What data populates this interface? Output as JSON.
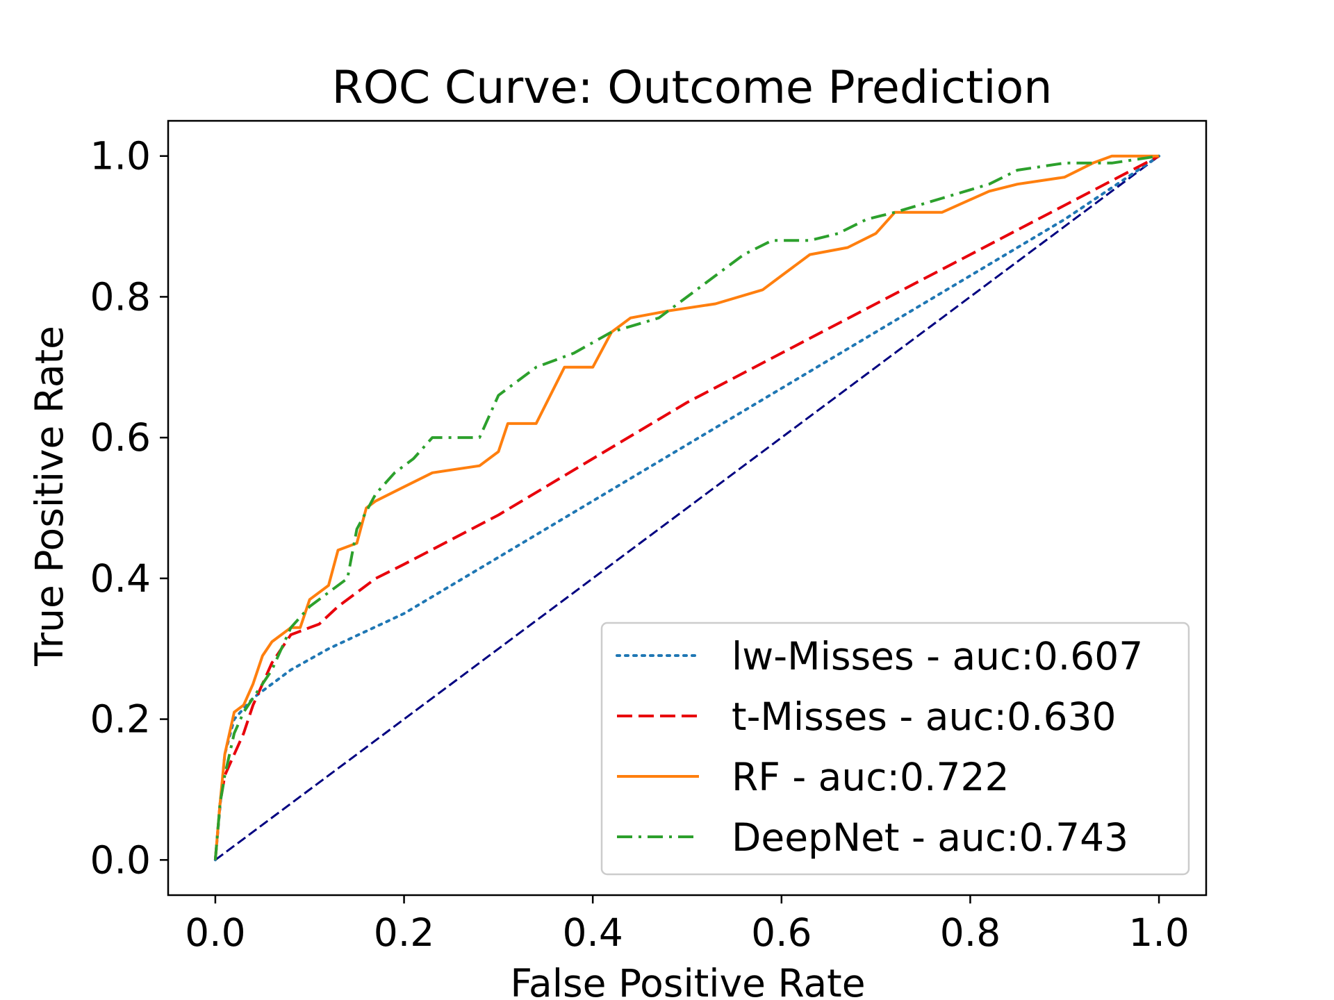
{
  "chart_data": {
    "type": "line",
    "title": "ROC Curve: Outcome Prediction",
    "xlabel": "False Positive Rate",
    "ylabel": "True Positive Rate",
    "xlim": [
      -0.05,
      1.05
    ],
    "ylim": [
      -0.05,
      1.05
    ],
    "xticks": [
      0.0,
      0.2,
      0.4,
      0.6,
      0.8,
      1.0
    ],
    "yticks": [
      0.0,
      0.2,
      0.4,
      0.6,
      0.8,
      1.0
    ],
    "xtick_labels": [
      "0.0",
      "0.2",
      "0.4",
      "0.6",
      "0.8",
      "1.0"
    ],
    "ytick_labels": [
      "0.0",
      "0.2",
      "0.4",
      "0.6",
      "0.8",
      "1.0"
    ],
    "grid": false,
    "legend_position": "lower-right",
    "reference_line": {
      "x": [
        0,
        1
      ],
      "y": [
        0,
        1
      ],
      "color": "#000080",
      "style": "dashed"
    },
    "series": [
      {
        "name": "lw-Misses - auc:0.607",
        "color": "#1f77b4",
        "style": "dotted",
        "x": [
          0,
          0.01,
          0.02,
          0.04,
          0.06,
          0.08,
          0.12,
          0.2,
          0.3,
          0.4,
          0.5,
          0.6,
          0.7,
          0.8,
          0.9,
          1.0
        ],
        "y": [
          0,
          0.15,
          0.2,
          0.23,
          0.25,
          0.27,
          0.3,
          0.35,
          0.43,
          0.51,
          0.59,
          0.67,
          0.75,
          0.83,
          0.91,
          1.0
        ]
      },
      {
        "name": "t-Misses - auc:0.630",
        "color": "#e8000b",
        "style": "dashed",
        "x": [
          0,
          0.005,
          0.01,
          0.02,
          0.03,
          0.04,
          0.05,
          0.06,
          0.08,
          0.1,
          0.11,
          0.13,
          0.17,
          0.2,
          0.3,
          0.4,
          0.5,
          0.6,
          0.7,
          0.8,
          0.9,
          1.0
        ],
        "y": [
          0,
          0.08,
          0.12,
          0.15,
          0.18,
          0.22,
          0.25,
          0.28,
          0.32,
          0.33,
          0.335,
          0.36,
          0.4,
          0.42,
          0.49,
          0.57,
          0.65,
          0.72,
          0.79,
          0.86,
          0.93,
          1.0
        ]
      },
      {
        "name": "RF - auc:0.722",
        "color": "#ff7f0e",
        "style": "solid",
        "x": [
          0,
          0.005,
          0.01,
          0.015,
          0.02,
          0.03,
          0.04,
          0.05,
          0.06,
          0.07,
          0.08,
          0.09,
          0.1,
          0.12,
          0.13,
          0.15,
          0.16,
          0.17,
          0.2,
          0.23,
          0.28,
          0.3,
          0.31,
          0.34,
          0.37,
          0.38,
          0.4,
          0.42,
          0.44,
          0.48,
          0.53,
          0.58,
          0.6,
          0.63,
          0.67,
          0.7,
          0.72,
          0.77,
          0.82,
          0.85,
          0.9,
          0.93,
          0.95,
          1.0
        ],
        "y": [
          0,
          0.08,
          0.15,
          0.18,
          0.21,
          0.22,
          0.25,
          0.29,
          0.31,
          0.32,
          0.33,
          0.33,
          0.37,
          0.39,
          0.44,
          0.45,
          0.5,
          0.51,
          0.53,
          0.55,
          0.56,
          0.58,
          0.62,
          0.62,
          0.7,
          0.7,
          0.7,
          0.75,
          0.77,
          0.78,
          0.79,
          0.81,
          0.83,
          0.86,
          0.87,
          0.89,
          0.92,
          0.92,
          0.95,
          0.96,
          0.97,
          0.99,
          1.0,
          1.0
        ]
      },
      {
        "name": "DeepNet - auc:0.743",
        "color": "#2ca02c",
        "style": "dashdot",
        "x": [
          0,
          0.005,
          0.01,
          0.02,
          0.03,
          0.04,
          0.05,
          0.06,
          0.08,
          0.1,
          0.12,
          0.14,
          0.15,
          0.17,
          0.19,
          0.21,
          0.23,
          0.28,
          0.3,
          0.34,
          0.38,
          0.42,
          0.47,
          0.5,
          0.53,
          0.56,
          0.59,
          0.63,
          0.66,
          0.69,
          0.72,
          0.77,
          0.82,
          0.85,
          0.9,
          0.95,
          1.0
        ],
        "y": [
          0,
          0.08,
          0.12,
          0.18,
          0.21,
          0.23,
          0.25,
          0.27,
          0.33,
          0.36,
          0.38,
          0.4,
          0.47,
          0.52,
          0.55,
          0.57,
          0.6,
          0.6,
          0.66,
          0.7,
          0.72,
          0.75,
          0.77,
          0.8,
          0.83,
          0.86,
          0.88,
          0.88,
          0.89,
          0.91,
          0.92,
          0.94,
          0.96,
          0.98,
          0.99,
          0.99,
          1.0
        ]
      }
    ]
  }
}
